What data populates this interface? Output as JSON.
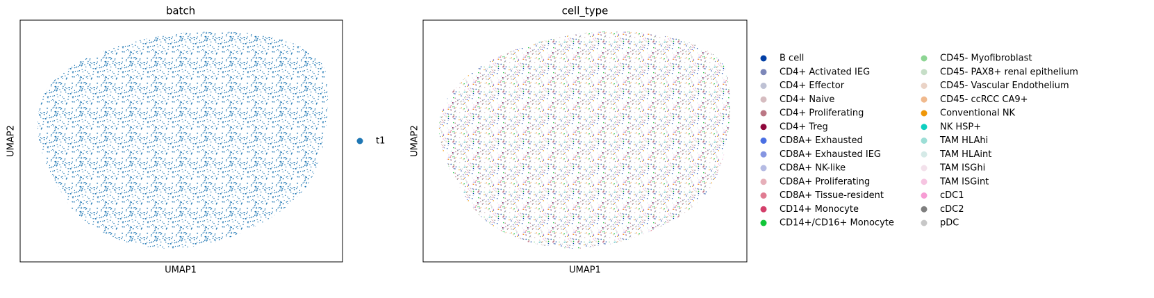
{
  "chart_data": [
    {
      "type": "scatter",
      "title": "batch",
      "x_label": "UMAP1",
      "y_label": "UMAP2",
      "series": [
        {
          "name": "t1",
          "color": "#1f77b4"
        }
      ]
    },
    {
      "type": "scatter",
      "title": "cell_type",
      "x_label": "UMAP1",
      "y_label": "UMAP2",
      "series": [
        {
          "name": "B cell",
          "color": "#023fa5"
        },
        {
          "name": "CD4+ Activated IEG",
          "color": "#7d87b9"
        },
        {
          "name": "CD4+ Effector",
          "color": "#bec1d4"
        },
        {
          "name": "CD4+ Naive",
          "color": "#d6bcc0"
        },
        {
          "name": "CD4+ Proliferating",
          "color": "#bb7784"
        },
        {
          "name": "CD4+ Treg",
          "color": "#8e063b"
        },
        {
          "name": "CD8A+ Exhausted",
          "color": "#4a6fe3"
        },
        {
          "name": "CD8A+ Exhausted IEG",
          "color": "#8595e1"
        },
        {
          "name": "CD8A+ NK-like",
          "color": "#b5bbe3"
        },
        {
          "name": "CD8A+ Proliferating",
          "color": "#e6afb9"
        },
        {
          "name": "CD8A+ Tissue-resident",
          "color": "#e07b91"
        },
        {
          "name": "CD14+ Monocyte",
          "color": "#d33f6a"
        },
        {
          "name": "CD14+/CD16+ Monocyte",
          "color": "#11c638"
        },
        {
          "name": "CD45- Myofibroblast",
          "color": "#8dd593"
        },
        {
          "name": "CD45- PAX8+ renal epithelium",
          "color": "#c6dec7"
        },
        {
          "name": "CD45- Vascular Endothelium",
          "color": "#ead3c6"
        },
        {
          "name": "CD45- ccRCC CA9+",
          "color": "#f0b98d"
        },
        {
          "name": "Conventional NK",
          "color": "#ef9708"
        },
        {
          "name": "NK HSP+",
          "color": "#0fcfc0"
        },
        {
          "name": "TAM HLAhi",
          "color": "#9cded6"
        },
        {
          "name": "TAM HLAint",
          "color": "#d5eae7"
        },
        {
          "name": "TAM ISGhi",
          "color": "#f3e1eb"
        },
        {
          "name": "TAM ISGint",
          "color": "#f6c4e1"
        },
        {
          "name": "cDC1",
          "color": "#f79cd4"
        },
        {
          "name": "cDC2",
          "color": "#7f7f7f"
        },
        {
          "name": "pDC",
          "color": "#c7c7c7"
        }
      ]
    }
  ]
}
